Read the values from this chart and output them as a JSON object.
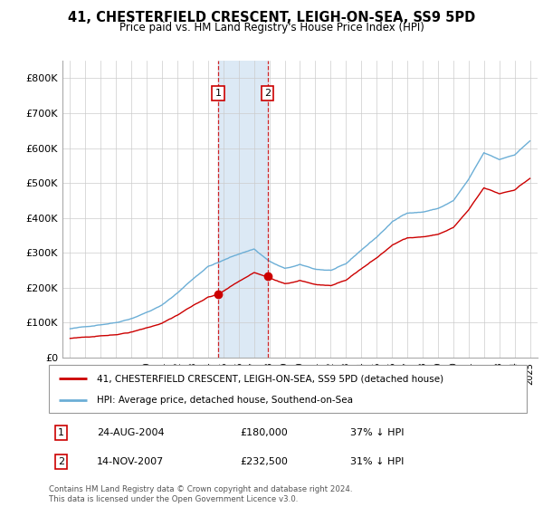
{
  "title": "41, CHESTERFIELD CRESCENT, LEIGH-ON-SEA, SS9 5PD",
  "subtitle": "Price paid vs. HM Land Registry's House Price Index (HPI)",
  "legend_line1": "41, CHESTERFIELD CRESCENT, LEIGH-ON-SEA, SS9 5PD (detached house)",
  "legend_line2": "HPI: Average price, detached house, Southend-on-Sea",
  "sale1_label": "1",
  "sale1_date": "24-AUG-2004",
  "sale1_price": "£180,000",
  "sale1_hpi": "37% ↓ HPI",
  "sale1_x": 2004.65,
  "sale1_y": 180000,
  "sale2_label": "2",
  "sale2_date": "14-NOV-2007",
  "sale2_price": "£232,500",
  "sale2_hpi": "31% ↓ HPI",
  "sale2_x": 2007.88,
  "sale2_y": 232500,
  "hpi_color": "#6baed6",
  "sale_color": "#cc0000",
  "shade_color": "#dce9f5",
  "marker_color": "#cc0000",
  "ylim": [
    0,
    850000
  ],
  "yticks": [
    0,
    100000,
    200000,
    300000,
    400000,
    500000,
    600000,
    700000,
    800000
  ],
  "ytick_labels": [
    "£0",
    "£100K",
    "£200K",
    "£300K",
    "£400K",
    "£500K",
    "£600K",
    "£700K",
    "£800K"
  ],
  "copyright": "Contains HM Land Registry data © Crown copyright and database right 2024.\nThis data is licensed under the Open Government Licence v3.0.",
  "xmin": 1995.0,
  "xmax": 2025.5
}
